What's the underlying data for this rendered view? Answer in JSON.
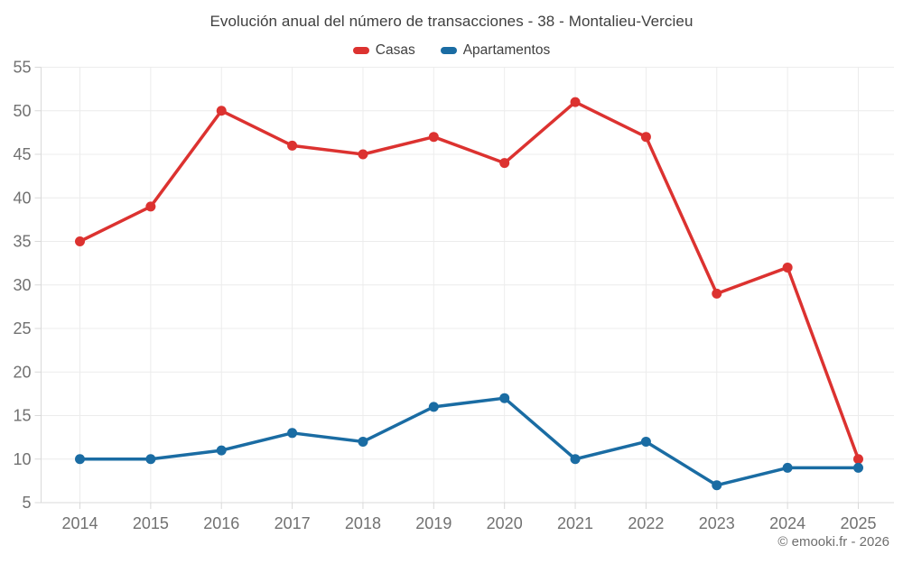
{
  "header": {
    "title": "Evolución anual del número de transacciones - 38 - Montalieu-Vercieu"
  },
  "legend": {
    "items": [
      {
        "label": "Casas",
        "color": "#dc3230"
      },
      {
        "label": "Apartamentos",
        "color": "#1a6ca3"
      }
    ]
  },
  "footer": {
    "copyright": "© emooki.fr - 2026"
  },
  "colors": {
    "casas": "#dc3230",
    "apartamentos": "#1a6ca3",
    "grid": "#ececec",
    "axis": "#d9d9d9",
    "tick_text": "#717171"
  },
  "chart_data": {
    "type": "line",
    "title": "Evolución anual del número de transacciones - 38 - Montalieu-Vercieu",
    "categories": [
      "2014",
      "2015",
      "2016",
      "2017",
      "2018",
      "2019",
      "2020",
      "2021",
      "2022",
      "2023",
      "2024",
      "2025"
    ],
    "series": [
      {
        "name": "Casas",
        "color": "#dc3230",
        "values": [
          35,
          39,
          50,
          46,
          45,
          47,
          44,
          51,
          47,
          29,
          32,
          10
        ]
      },
      {
        "name": "Apartamentos",
        "color": "#1a6ca3",
        "values": [
          10,
          10,
          11,
          13,
          12,
          16,
          17,
          10,
          12,
          7,
          9,
          9
        ]
      }
    ],
    "xlabel": "",
    "ylabel": "",
    "ylim": [
      5,
      55
    ],
    "yticks": [
      5,
      10,
      15,
      20,
      25,
      30,
      35,
      40,
      45,
      50,
      55
    ],
    "grid": true,
    "legend_position": "top"
  }
}
